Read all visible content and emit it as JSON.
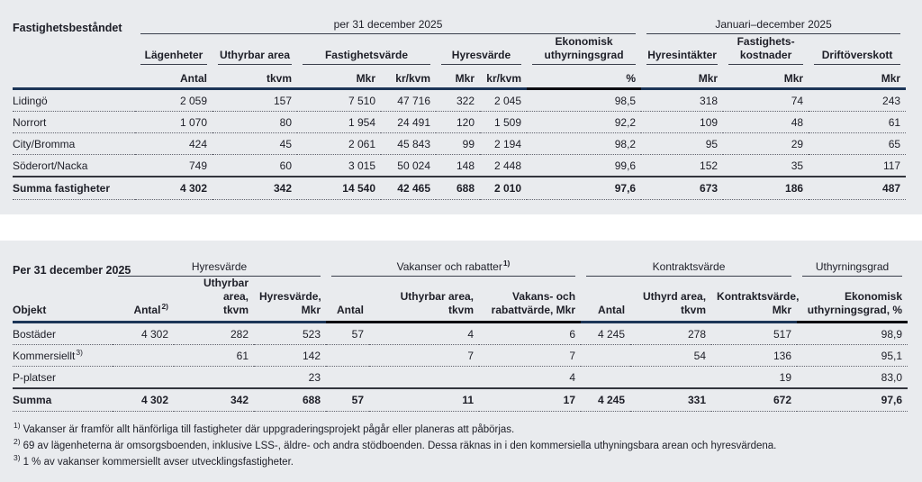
{
  "colors": {
    "panel_bg": "#e9ebee",
    "rule_navy": "#1c3557",
    "rule_black": "#0d0d12",
    "text": "#1d1e27"
  },
  "table1": {
    "title": "Fastighetsbeståndet",
    "period_groups": [
      {
        "label": "per 31 december 2025",
        "start": 2,
        "end": 8
      },
      {
        "label": "Januari–december 2025",
        "start": 9,
        "end": 11
      }
    ],
    "groups": [
      {
        "label": "Lägenheter",
        "start": 2,
        "end": 2
      },
      {
        "label": "Uthyrbar area",
        "start": 3,
        "end": 3
      },
      {
        "label": "Fastighetsvärde",
        "start": 4,
        "end": 5
      },
      {
        "label": "Hyresvärde",
        "start": 6,
        "end": 7
      },
      {
        "label": "Ekonomisk\nuthyrningsgrad",
        "start": 8,
        "end": 8
      },
      {
        "label": "Hyresintäkter",
        "start": 9,
        "end": 9
      },
      {
        "label": "Fastighets-\nkostnader",
        "start": 10,
        "end": 10
      },
      {
        "label": "Driftöverskott",
        "start": 11,
        "end": 11
      }
    ],
    "units": [
      "Antal",
      "tkvm",
      "Mkr",
      "kr/kvm",
      "Mkr",
      "kr/kvm",
      "%",
      "Mkr",
      "Mkr",
      "Mkr"
    ],
    "highlight_cols": [
      8
    ],
    "rows": [
      {
        "label": "Lidingö",
        "values": [
          "2 059",
          "157",
          "7 510",
          "47 716",
          "322",
          "2 045",
          "98,5",
          "318",
          "74",
          "243"
        ]
      },
      {
        "label": "Norrort",
        "values": [
          "1 070",
          "80",
          "1 954",
          "24 491",
          "120",
          "1 509",
          "92,2",
          "109",
          "48",
          "61"
        ]
      },
      {
        "label": "City/Bromma",
        "values": [
          "424",
          "45",
          "2 061",
          "45 843",
          "99",
          "2 194",
          "98,2",
          "95",
          "29",
          "65"
        ]
      },
      {
        "label": "Söderort/Nacka",
        "values": [
          "749",
          "60",
          "3 015",
          "50 024",
          "148",
          "2 448",
          "99,6",
          "152",
          "35",
          "117"
        ]
      }
    ],
    "total": {
      "label": "Summa fastigheter",
      "values": [
        "4 302",
        "342",
        "14 540",
        "42 465",
        "688",
        "2 010",
        "97,6",
        "673",
        "186",
        "487"
      ]
    }
  },
  "table2": {
    "title": "Per 31 december 2025",
    "groups": [
      {
        "label": "Hyresvärde",
        "start": 2,
        "end": 4
      },
      {
        "label": "Vakanser och rabatter",
        "sup": "1)",
        "start": 5,
        "end": 7
      },
      {
        "label": "Kontraktsvärde",
        "start": 8,
        "end": 10
      },
      {
        "label": "Uthyrningsgrad",
        "start": 11,
        "end": 11
      }
    ],
    "col_headers": [
      {
        "text": "Objekt"
      },
      {
        "text": "Antal",
        "sup": "2)"
      },
      {
        "text": "Uthyrbar area,\ntkvm"
      },
      {
        "text": "Hyresvärde,\nMkr"
      },
      {
        "text": "Antal"
      },
      {
        "text": "Uthyrbar area,\ntkvm"
      },
      {
        "text": "Vakans- och\nrabattvärde, Mkr"
      },
      {
        "text": "Antal"
      },
      {
        "text": "Uthyrd area,\ntkvm"
      },
      {
        "text": "Kontraktsvärde,\nMkr"
      },
      {
        "text": "Ekonomisk\nuthyrningsgrad, %"
      }
    ],
    "highlight_cols": [
      5,
      6,
      7,
      11
    ],
    "rows": [
      {
        "label": "Bostäder",
        "values": [
          "4 302",
          "282",
          "523",
          "57",
          "4",
          "6",
          "4 245",
          "278",
          "517",
          "98,9"
        ]
      },
      {
        "label": "Kommersiellt",
        "sup": "3)",
        "values": [
          "",
          "61",
          "142",
          "",
          "7",
          "7",
          "",
          "54",
          "136",
          "95,1"
        ]
      },
      {
        "label": "P-platser",
        "values": [
          "",
          "",
          "23",
          "",
          "",
          "4",
          "",
          "",
          "19",
          "83,0"
        ]
      }
    ],
    "total": {
      "label": "Summa",
      "values": [
        "4 302",
        "342",
        "688",
        "57",
        "11",
        "17",
        "4 245",
        "331",
        "672",
        "97,6"
      ]
    }
  },
  "footnotes": [
    {
      "marker": "1)",
      "text": "Vakanser är framför allt hänförliga till fastigheter där uppgraderingsprojekt pågår eller planeras att påbörjas."
    },
    {
      "marker": "2)",
      "text": "69 av lägenheterna är omsorgsboenden, inklusive LSS-, äldre- och andra stödboenden. Dessa räknas in i den kommersiella uthyningsbara arean och hyresvärdena."
    },
    {
      "marker": "3)",
      "text": "1 % av vakanser kommersiellt avser utvecklingsfastigheter."
    }
  ]
}
